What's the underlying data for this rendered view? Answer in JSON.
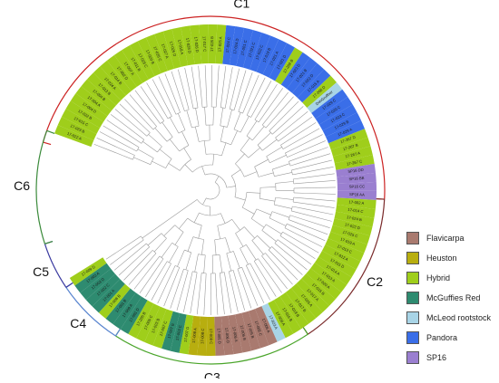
{
  "colors": {
    "Flavicarpa": "#a97a6f",
    "Heuston": "#b8ae0f",
    "Hybrid": "#9fce1b",
    "McGuffies Red": "#2e8b70",
    "McLeod rootstock": "#a8d4e6",
    "Pandora": "#3a6ee8",
    "SP16": "#9a7fd0"
  },
  "legend": [
    "Flavicarpa",
    "Heuston",
    "Hybrid",
    "McGuffies Red",
    "McLeod rootstock",
    "Pandora",
    "SP16"
  ],
  "clades": [
    {
      "label": "C1",
      "color": "#cc2222",
      "start": 286,
      "end": 93
    },
    {
      "label": "C2",
      "color": "#7a2a2a",
      "start": 93,
      "end": 146
    },
    {
      "label": "C3",
      "color": "#4aa52a",
      "start": 146,
      "end": 213
    },
    {
      "label": "C4",
      "color": "#5a86d0",
      "start": 213,
      "end": 236
    },
    {
      "label": "C5",
      "color": "#3a3aa0",
      "start": 236,
      "end": 252
    },
    {
      "label": "C6",
      "color": "#3a8a3a",
      "start": 252,
      "end": 290
    }
  ],
  "tips": [
    {
      "label": "17-022 A",
      "group": "Hybrid"
    },
    {
      "label": "17-023 B",
      "group": "Hybrid"
    },
    {
      "label": "17-015 C",
      "group": "Hybrid"
    },
    {
      "label": "17-022 B",
      "group": "Hybrid"
    },
    {
      "label": "17-004 D",
      "group": "Hybrid"
    },
    {
      "label": "17-004 A",
      "group": "Hybrid"
    },
    {
      "label": "17-004 B",
      "group": "Hybrid"
    },
    {
      "label": "17-013 B",
      "group": "Hybrid"
    },
    {
      "label": "17-024 A",
      "group": "Hybrid"
    },
    {
      "label": "17-014 B",
      "group": "Hybrid"
    },
    {
      "label": "17-002 D",
      "group": "Hybrid"
    },
    {
      "label": "17-007 A",
      "group": "Hybrid"
    },
    {
      "label": "17-011 B",
      "group": "Hybrid"
    },
    {
      "label": "17-028 C",
      "group": "Hybrid"
    },
    {
      "label": "17-020 B",
      "group": "Hybrid"
    },
    {
      "label": "17-026 C",
      "group": "Hybrid"
    },
    {
      "label": "17-027 A",
      "group": "Hybrid"
    },
    {
      "label": "17-025 D",
      "group": "Hybrid"
    },
    {
      "label": "17-018 A",
      "group": "Hybrid"
    },
    {
      "label": "17-028 D",
      "group": "Hybrid"
    },
    {
      "label": "17-026 D",
      "group": "Hybrid"
    },
    {
      "label": "17-017 C",
      "group": "Hybrid"
    },
    {
      "label": "17-026 B",
      "group": "Hybrid"
    },
    {
      "label": "17-025 A",
      "group": "Hybrid"
    },
    {
      "label": "17-024 C",
      "group": "Pandora"
    },
    {
      "label": "17-024 D",
      "group": "Pandora"
    },
    {
      "label": "17-001 C",
      "group": "Pandora"
    },
    {
      "label": "17-021 C",
      "group": "Pandora"
    },
    {
      "label": "17-022 C",
      "group": "Pandora"
    },
    {
      "label": "17-019 B",
      "group": "Pandora"
    },
    {
      "label": "17-021 A",
      "group": "Pandora"
    },
    {
      "label": "17-021 D",
      "group": "Pandora"
    },
    {
      "label": "17-268 B",
      "group": "Hybrid"
    },
    {
      "label": "17-023 D",
      "group": "Pandora"
    },
    {
      "label": "17-021 B",
      "group": "Pandora"
    },
    {
      "label": "17-022 D",
      "group": "Pandora"
    },
    {
      "label": "17-015 A",
      "group": "Pandora"
    },
    {
      "label": "17-268 D",
      "group": "Hybrid"
    },
    {
      "label": "DonGruffner",
      "group": "McLeod rootstock"
    },
    {
      "label": "17-029 C",
      "group": "Pandora"
    },
    {
      "label": "17-020 C",
      "group": "Pandora"
    },
    {
      "label": "17-023 C",
      "group": "Pandora"
    },
    {
      "label": "17-029 B",
      "group": "Pandora"
    },
    {
      "label": "17-029 A",
      "group": "Pandora"
    },
    {
      "label": "17-267 D",
      "group": "Hybrid"
    },
    {
      "label": "17-267 B",
      "group": "Hybrid"
    },
    {
      "label": "17-267 A",
      "group": "Hybrid"
    },
    {
      "label": "17-267 C",
      "group": "Hybrid"
    },
    {
      "label": "SP16 DD",
      "group": "SP16"
    },
    {
      "label": "SP16 BB",
      "group": "SP16"
    },
    {
      "label": "SP16 CC",
      "group": "SP16"
    },
    {
      "label": "SP16 AA",
      "group": "SP16"
    },
    {
      "label": "17-002 A",
      "group": "Hybrid"
    },
    {
      "label": "17-014 C",
      "group": "Hybrid"
    },
    {
      "label": "17-024 B",
      "group": "Hybrid"
    },
    {
      "label": "17-022 D",
      "group": "Hybrid"
    },
    {
      "label": "17-025 C",
      "group": "Hybrid"
    },
    {
      "label": "17-019 A",
      "group": "Hybrid"
    },
    {
      "label": "17-013 C",
      "group": "Hybrid"
    },
    {
      "label": "17-012 A",
      "group": "Hybrid"
    },
    {
      "label": "17-011 D",
      "group": "Hybrid"
    },
    {
      "label": "17-014 A",
      "group": "Hybrid"
    },
    {
      "label": "17-013 A",
      "group": "Hybrid"
    },
    {
      "label": "17-020 A",
      "group": "Hybrid"
    },
    {
      "label": "17-015 B",
      "group": "Hybrid"
    },
    {
      "label": "17-017 A",
      "group": "Hybrid"
    },
    {
      "label": "17-026 A",
      "group": "Hybrid"
    },
    {
      "label": "17-017 B",
      "group": "Hybrid"
    },
    {
      "label": "17-018 B",
      "group": "Hybrid"
    },
    {
      "label": "17-016 B",
      "group": "Hybrid"
    },
    {
      "label": "17-028 A",
      "group": "Hybrid"
    },
    {
      "label": "17-023 A",
      "group": "McLeod rootstock"
    },
    {
      "label": "17-005 A",
      "group": "Flavicarpa"
    },
    {
      "label": "17-005 C",
      "group": "Flavicarpa"
    },
    {
      "label": "17-005 B",
      "group": "Flavicarpa"
    },
    {
      "label": "17-006 B",
      "group": "Flavicarpa"
    },
    {
      "label": "17-006 A",
      "group": "Flavicarpa"
    },
    {
      "label": "17-006 D",
      "group": "Flavicarpa"
    },
    {
      "label": "17-005 D",
      "group": "Flavicarpa"
    },
    {
      "label": "17-009 C",
      "group": "Heuston"
    },
    {
      "label": "17-008 C",
      "group": "Heuston"
    },
    {
      "label": "17-008 A",
      "group": "Heuston"
    },
    {
      "label": "17-007 D",
      "group": "Hybrid"
    },
    {
      "label": "17-003 C",
      "group": "McGuffies Red"
    },
    {
      "label": "17-007 B",
      "group": "McGuffies Red"
    },
    {
      "label": "17-007 C",
      "group": "Hybrid"
    },
    {
      "label": "17-003 B",
      "group": "Hybrid"
    },
    {
      "label": "17-009 C",
      "group": "Hybrid"
    },
    {
      "label": "17-265 B",
      "group": "Hybrid"
    },
    {
      "label": "17-001 D",
      "group": "McGuffies Red"
    },
    {
      "label": "17-009 A",
      "group": "McGuffies Red"
    },
    {
      "label": "17-001 B",
      "group": "McGuffies Red"
    },
    {
      "label": "17-008 B",
      "group": "Hybrid"
    },
    {
      "label": "17-001 A",
      "group": "McGuffies Red"
    },
    {
      "label": "17-002 C",
      "group": "McGuffies Red"
    },
    {
      "label": "17-003 D",
      "group": "McGuffies Red"
    },
    {
      "label": "17-003 A",
      "group": "McGuffies Red"
    },
    {
      "label": "17-009 D",
      "group": "Hybrid"
    }
  ]
}
